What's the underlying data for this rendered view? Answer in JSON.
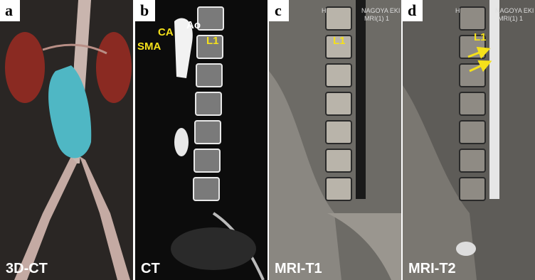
{
  "panels": [
    {
      "letter": "a",
      "caption": "3D-CT",
      "annotations": []
    },
    {
      "letter": "b",
      "caption": "CT",
      "annotations": [
        "Ao",
        "CA",
        "SMA",
        "L1"
      ]
    },
    {
      "letter": "c",
      "caption": "MRI-T1",
      "annotations": [
        "L1",
        "H",
        "NAGOYA EKI",
        "MRI(1) 1"
      ]
    },
    {
      "letter": "d",
      "caption": "MRI-T2",
      "annotations": [
        "L1",
        "H",
        "NAGOYA EKI",
        "MRI(1) 1"
      ]
    }
  ]
}
